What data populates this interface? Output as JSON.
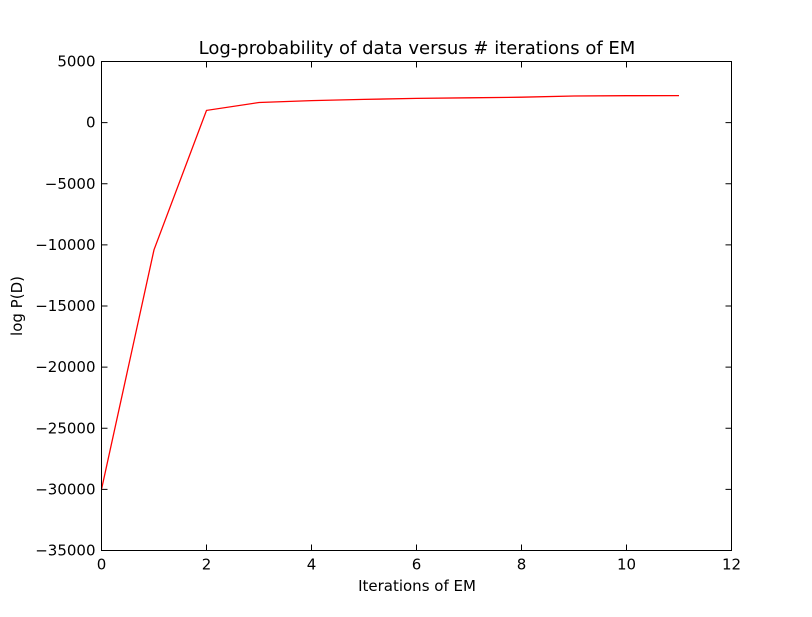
{
  "chart_data": {
    "type": "line",
    "title": "Log-probability of data versus # iterations of EM",
    "xlabel": "Iterations of EM",
    "ylabel": "log P(D)",
    "xlim": [
      0,
      12
    ],
    "ylim": [
      -35000,
      5000
    ],
    "x_ticks": [
      0,
      2,
      4,
      6,
      8,
      10,
      12
    ],
    "x_tick_labels": [
      "0",
      "2",
      "4",
      "6",
      "8",
      "10",
      "12"
    ],
    "y_ticks": [
      5000,
      0,
      -5000,
      -10000,
      -15000,
      -20000,
      -25000,
      -30000,
      -35000
    ],
    "y_tick_labels": [
      "5000",
      "0",
      "−5000",
      "−10000",
      "−15000",
      "−20000",
      "−25000",
      "−30000",
      "−35000"
    ],
    "grid": false,
    "series": [
      {
        "color": "#ff0000",
        "x": [
          0,
          1,
          2,
          3,
          4,
          5,
          6,
          7,
          8,
          9,
          10,
          11
        ],
        "values": [
          -30000,
          -10400,
          1000,
          1650,
          1800,
          1900,
          1980,
          2030,
          2080,
          2180,
          2200,
          2210
        ]
      }
    ]
  }
}
